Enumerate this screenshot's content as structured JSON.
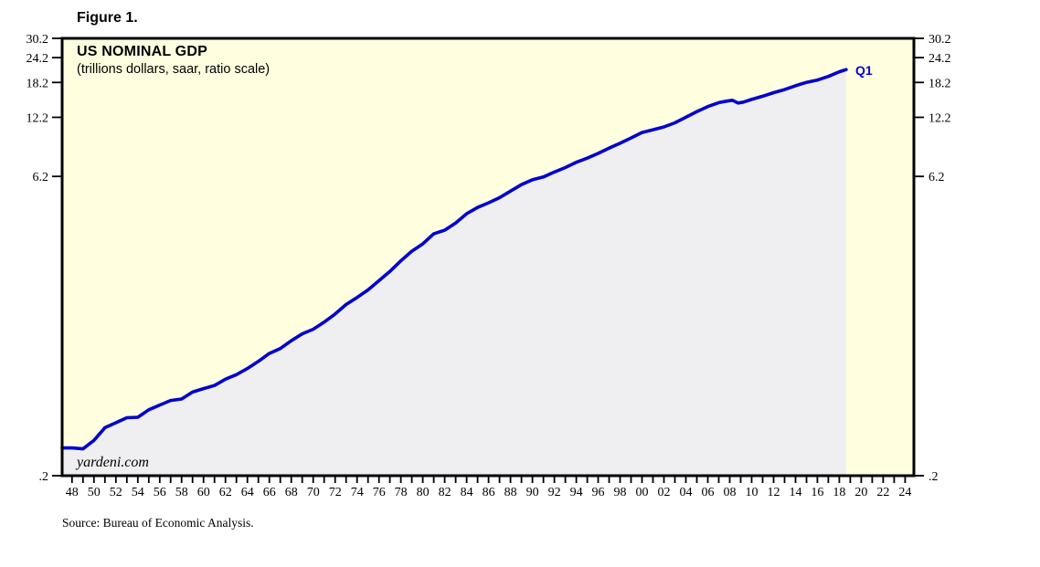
{
  "figure_label": "Figure 1.",
  "source_note": "Source: Bureau of Economic Analysis.",
  "chart": {
    "title": "US NOMINAL GDP",
    "subtitle": "(trillions dollars, saar, ratio scale)",
    "watermark": "yardeni.com",
    "end_label": "Q1"
  },
  "colors": {
    "page_background": "#FFFFFF",
    "plot_background": "#FFFFE0",
    "area_fill": "#EFEFF1",
    "line": "#0000D0",
    "axis": "#000000",
    "end_label": "#0000D0"
  },
  "chart_data": {
    "type": "line",
    "title": "US NOMINAL GDP",
    "subtitle": "(trillions dollars, saar, ratio scale)",
    "y_scale": "log",
    "ylim": [
      0.2,
      30.2
    ],
    "xlim": [
      1947.6,
      2025.3
    ],
    "grid": false,
    "legend": "none",
    "y_ticks": [
      {
        "value": 30.2,
        "label": "30.2"
      },
      {
        "value": 24.2,
        "label": "24.2"
      },
      {
        "value": 18.2,
        "label": "18.2"
      },
      {
        "value": 12.2,
        "label": "12.2"
      },
      {
        "value": 6.2,
        "label": "6.2"
      },
      {
        "value": 0.2,
        "label": ".2"
      }
    ],
    "x_ticks": [
      {
        "year": 1948,
        "label": "48"
      },
      {
        "year": 1950,
        "label": "50"
      },
      {
        "year": 1952,
        "label": "52"
      },
      {
        "year": 1954,
        "label": "54"
      },
      {
        "year": 1956,
        "label": "56"
      },
      {
        "year": 1958,
        "label": "58"
      },
      {
        "year": 1960,
        "label": "60"
      },
      {
        "year": 1962,
        "label": "62"
      },
      {
        "year": 1964,
        "label": "64"
      },
      {
        "year": 1966,
        "label": "66"
      },
      {
        "year": 1968,
        "label": "68"
      },
      {
        "year": 1970,
        "label": "70"
      },
      {
        "year": 1972,
        "label": "72"
      },
      {
        "year": 1974,
        "label": "74"
      },
      {
        "year": 1976,
        "label": "76"
      },
      {
        "year": 1978,
        "label": "78"
      },
      {
        "year": 1980,
        "label": "80"
      },
      {
        "year": 1982,
        "label": "82"
      },
      {
        "year": 1984,
        "label": "84"
      },
      {
        "year": 1986,
        "label": "86"
      },
      {
        "year": 1988,
        "label": "88"
      },
      {
        "year": 1990,
        "label": "90"
      },
      {
        "year": 1992,
        "label": "92"
      },
      {
        "year": 1994,
        "label": "94"
      },
      {
        "year": 1996,
        "label": "96"
      },
      {
        "year": 1998,
        "label": "98"
      },
      {
        "year": 2000,
        "label": "00"
      },
      {
        "year": 2002,
        "label": "02"
      },
      {
        "year": 2004,
        "label": "04"
      },
      {
        "year": 2006,
        "label": "06"
      },
      {
        "year": 2008,
        "label": "08"
      },
      {
        "year": 2010,
        "label": "10"
      },
      {
        "year": 2012,
        "label": "12"
      },
      {
        "year": 2014,
        "label": "14"
      },
      {
        "year": 2016,
        "label": "16"
      },
      {
        "year": 2018,
        "label": "18"
      },
      {
        "year": 2020,
        "label": "20"
      },
      {
        "year": 2022,
        "label": "22"
      },
      {
        "year": 2024,
        "label": "24"
      }
    ],
    "x_minor_tick_range": [
      1948,
      2024
    ],
    "x_minor_tick_step": 1,
    "series": [
      {
        "name": "US Nominal GDP (trillions dollars, saar, ratio scale)",
        "end_annotation": "Q1",
        "points": [
          [
            1948.5,
            0.275
          ],
          [
            1949.5,
            0.272
          ],
          [
            1950.5,
            0.3
          ],
          [
            1951.5,
            0.347
          ],
          [
            1952.5,
            0.367
          ],
          [
            1953.5,
            0.389
          ],
          [
            1954.5,
            0.391
          ],
          [
            1955.5,
            0.426
          ],
          [
            1956.5,
            0.45
          ],
          [
            1957.5,
            0.474
          ],
          [
            1958.5,
            0.482
          ],
          [
            1959.5,
            0.522
          ],
          [
            1960.5,
            0.543
          ],
          [
            1961.5,
            0.563
          ],
          [
            1962.5,
            0.605
          ],
          [
            1963.5,
            0.638
          ],
          [
            1964.5,
            0.684
          ],
          [
            1965.5,
            0.742
          ],
          [
            1966.5,
            0.813
          ],
          [
            1967.5,
            0.86
          ],
          [
            1968.5,
            0.941
          ],
          [
            1969.5,
            1.018
          ],
          [
            1970.5,
            1.073
          ],
          [
            1971.5,
            1.165
          ],
          [
            1972.5,
            1.279
          ],
          [
            1973.5,
            1.425
          ],
          [
            1974.5,
            1.545
          ],
          [
            1975.5,
            1.685
          ],
          [
            1976.5,
            1.873
          ],
          [
            1977.5,
            2.082
          ],
          [
            1978.5,
            2.352
          ],
          [
            1979.5,
            2.627
          ],
          [
            1980.5,
            2.857
          ],
          [
            1981.5,
            3.207
          ],
          [
            1982.5,
            3.344
          ],
          [
            1983.5,
            3.634
          ],
          [
            1984.5,
            4.038
          ],
          [
            1985.5,
            4.339
          ],
          [
            1986.5,
            4.58
          ],
          [
            1987.5,
            4.855
          ],
          [
            1988.5,
            5.236
          ],
          [
            1989.5,
            5.642
          ],
          [
            1990.5,
            5.963
          ],
          [
            1991.5,
            6.158
          ],
          [
            1992.5,
            6.52
          ],
          [
            1993.5,
            6.859
          ],
          [
            1994.5,
            7.287
          ],
          [
            1995.5,
            7.64
          ],
          [
            1996.5,
            8.073
          ],
          [
            1997.5,
            8.578
          ],
          [
            1998.5,
            9.063
          ],
          [
            1999.5,
            9.631
          ],
          [
            2000.5,
            10.252
          ],
          [
            2001.5,
            10.582
          ],
          [
            2002.5,
            10.936
          ],
          [
            2003.5,
            11.458
          ],
          [
            2004.5,
            12.214
          ],
          [
            2005.5,
            13.037
          ],
          [
            2006.5,
            13.815
          ],
          [
            2007.5,
            14.452
          ],
          [
            2008.25,
            14.713
          ],
          [
            2008.75,
            14.843
          ],
          [
            2009.25,
            14.383
          ],
          [
            2009.75,
            14.541
          ],
          [
            2010.5,
            14.992
          ],
          [
            2011.5,
            15.543
          ],
          [
            2012.5,
            16.197
          ],
          [
            2013.5,
            16.785
          ],
          [
            2014.5,
            17.527
          ],
          [
            2015.5,
            18.225
          ],
          [
            2016.5,
            18.715
          ],
          [
            2017.5,
            19.519
          ],
          [
            2018.5,
            20.58
          ],
          [
            2019.125,
            21.098
          ]
        ]
      }
    ]
  }
}
